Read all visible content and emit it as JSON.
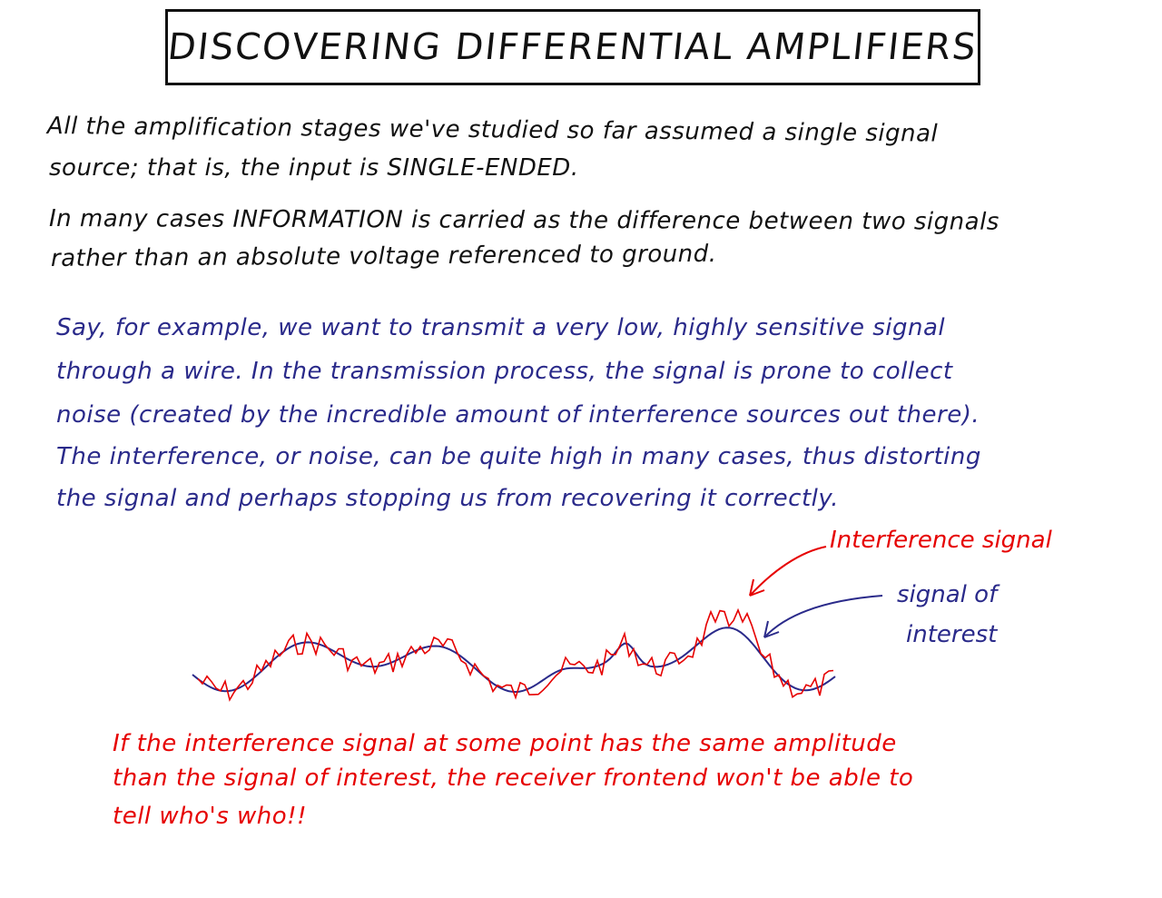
{
  "title": "DISCOVERING DIFFERENTIAL AMPLIFIERS",
  "intro_lines": [
    "All the amplification stages we've studied so far assumed a single signal",
    "source; that is, the input is SINGLE-ENDED.",
    "In many cases INFORMATION is carried as the difference between two signals",
    "rather than an absolute voltage referenced to ground."
  ],
  "example_lines": [
    "Say, for example, we want to transmit a very low, highly sensitive signal",
    "through a wire. In the transmission process, the signal is prone to collect",
    "noise (created by the incredible amount of interference sources out there).",
    "The interference, or noise, can be quite high in many cases, thus distorting",
    "the signal and perhaps stopping us from recovering it correctly."
  ],
  "diagram": {
    "interference_label": "Interference signal",
    "interest_label_line1": "signal of",
    "interest_label_line2": "interest",
    "interference_color": "#e60000",
    "interest_color": "#2a2a8a"
  },
  "conclusion_lines": [
    "If the interference signal at some point has the same amplitude",
    "than the signal of interest, the receiver frontend won't be able to",
    "tell who's who!!"
  ]
}
